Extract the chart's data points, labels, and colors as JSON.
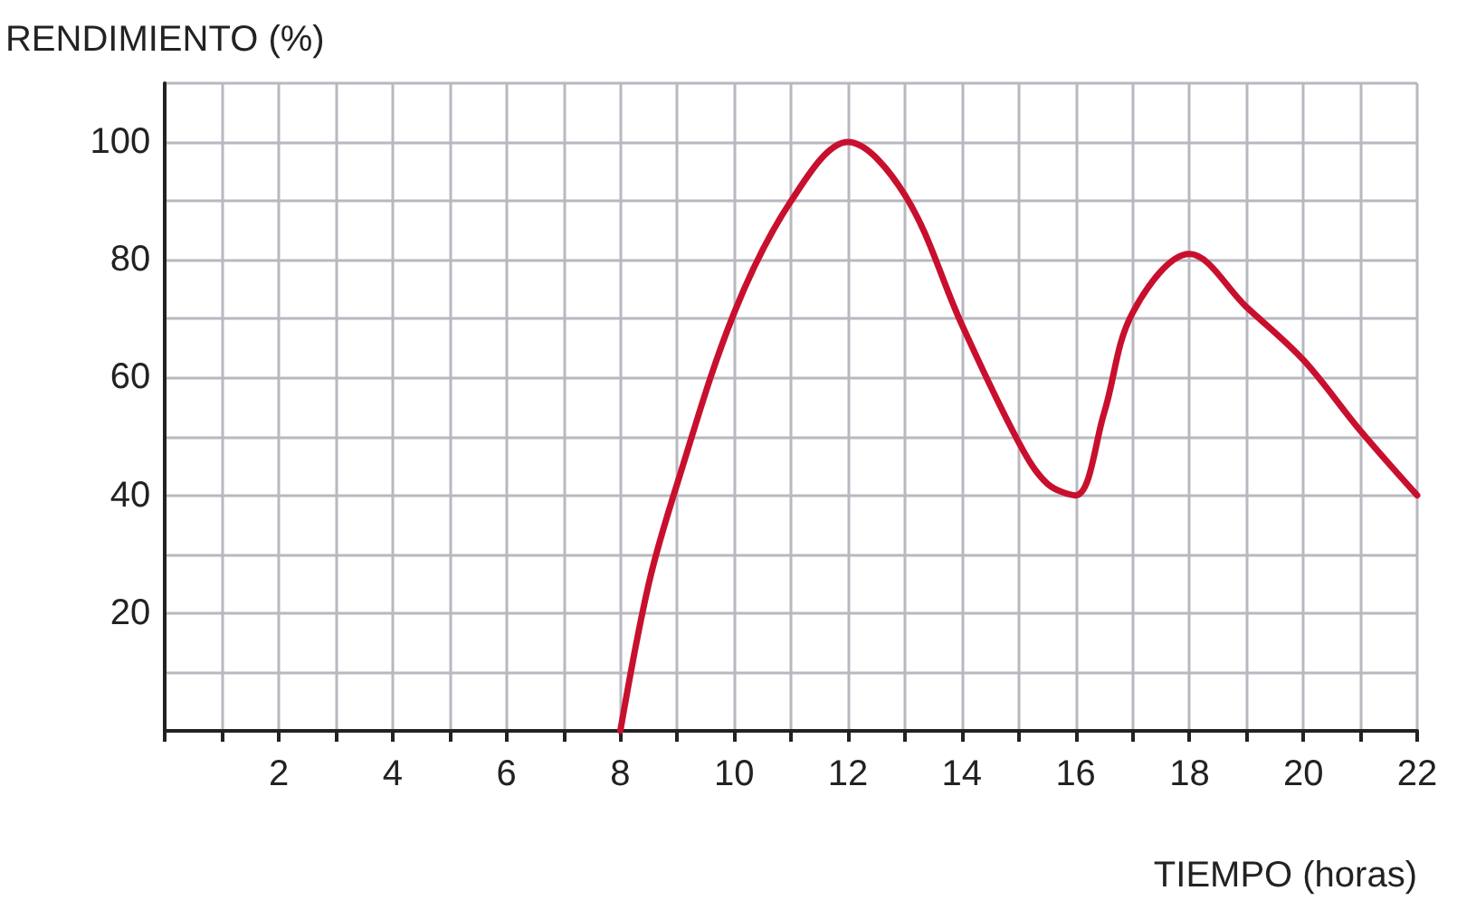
{
  "chart_data": {
    "type": "line",
    "ylabel": "RENDIMIENTO (%)",
    "xlabel": "TIEMPO (horas)",
    "x": [
      8,
      8.5,
      9,
      10,
      11,
      12,
      13,
      14,
      15,
      15.5,
      16,
      16.5,
      17,
      18,
      19,
      20,
      21,
      22
    ],
    "series": [
      {
        "color": "#c8102e",
        "values": [
          0,
          25,
          42,
          71,
          90,
          100,
          91,
          69,
          49,
          42,
          40,
          54,
          71,
          81,
          72,
          63,
          51,
          40
        ]
      }
    ],
    "xlim": [
      0,
      22
    ],
    "ylim": [
      0,
      110
    ],
    "xticks": [
      {
        "value": 0,
        "label": null
      },
      {
        "value": 1,
        "label": null
      },
      2,
      {
        "value": 3,
        "label": null
      },
      4,
      {
        "value": 5,
        "label": null
      },
      6,
      {
        "value": 7,
        "label": null
      },
      8,
      {
        "value": 9,
        "label": null
      },
      10,
      {
        "value": 11,
        "label": null
      },
      12,
      {
        "value": 13,
        "label": null
      },
      14,
      {
        "value": 15,
        "label": null
      },
      16,
      {
        "value": 17,
        "label": null
      },
      18,
      {
        "value": 19,
        "label": null
      },
      20,
      {
        "value": 21,
        "label": null
      },
      22
    ],
    "yticks": [
      {
        "value": 0,
        "label": null
      },
      {
        "value": 10,
        "label": null
      },
      20,
      {
        "value": 30,
        "label": null
      },
      40,
      {
        "value": 50,
        "label": null
      },
      60,
      {
        "value": 70,
        "label": null
      },
      80,
      {
        "value": 90,
        "label": null
      },
      100,
      {
        "value": 110,
        "label": null
      }
    ],
    "grid": true,
    "marker": "none",
    "line_style": "solid"
  }
}
